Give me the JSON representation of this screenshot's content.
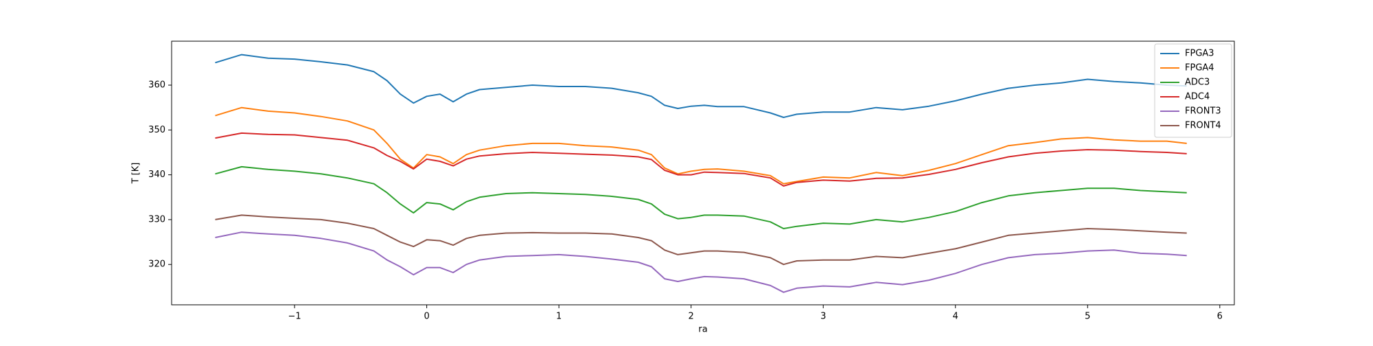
{
  "chart_data": {
    "type": "line",
    "x_label": "ra",
    "y_label": "T [K]",
    "x": [
      -1.6,
      -1.4,
      -1.2,
      -1.0,
      -0.8,
      -0.6,
      -0.4,
      -0.3,
      -0.2,
      -0.1,
      0.0,
      0.1,
      0.2,
      0.3,
      0.4,
      0.6,
      0.8,
      1.0,
      1.2,
      1.4,
      1.6,
      1.7,
      1.8,
      1.9,
      2.0,
      2.1,
      2.2,
      2.4,
      2.6,
      2.7,
      2.8,
      3.0,
      3.2,
      3.4,
      3.6,
      3.8,
      4.0,
      4.2,
      4.4,
      4.6,
      4.8,
      5.0,
      5.2,
      5.4,
      5.6,
      5.75
    ],
    "series": [
      {
        "name": "FPGA3",
        "color": "#1f77b4",
        "values": [
          365,
          366.8,
          366,
          365.8,
          365.2,
          364.5,
          363,
          361,
          358,
          356,
          357.5,
          358,
          356.3,
          358,
          359,
          359.5,
          360,
          359.7,
          359.7,
          359.3,
          358.3,
          357.5,
          355.5,
          354.8,
          355.3,
          355.5,
          355.2,
          355.2,
          353.8,
          352.8,
          353.5,
          354,
          354,
          355,
          354.5,
          355.3,
          356.5,
          358,
          359.3,
          360,
          360.5,
          361.3,
          360.8,
          360.5,
          360,
          359.8
        ]
      },
      {
        "name": "FPGA4",
        "color": "#ff7f0e",
        "values": [
          353.2,
          355,
          354.2,
          353.8,
          353,
          352,
          350,
          347,
          343.5,
          341.5,
          344.5,
          344,
          342.5,
          344.5,
          345.5,
          346.5,
          347,
          347,
          346.5,
          346.2,
          345.5,
          344.5,
          341.5,
          340.2,
          340.8,
          341.2,
          341.3,
          340.8,
          339.8,
          338,
          338.5,
          339.5,
          339.3,
          340.5,
          339.8,
          341,
          342.5,
          344.5,
          346.5,
          347.2,
          348,
          348.3,
          347.8,
          347.5,
          347.5,
          347
        ]
      },
      {
        "name": "ADC3",
        "color": "#2ca02c",
        "values": [
          340.2,
          341.8,
          341.2,
          340.8,
          340.2,
          339.3,
          338,
          336,
          333.5,
          331.5,
          333.8,
          333.5,
          332.2,
          334,
          335,
          335.8,
          336,
          335.8,
          335.6,
          335.2,
          334.5,
          333.5,
          331.2,
          330.2,
          330.5,
          331,
          331,
          330.8,
          329.5,
          328,
          328.5,
          329.2,
          329,
          330,
          329.5,
          330.5,
          331.8,
          333.8,
          335.3,
          336,
          336.5,
          337,
          337,
          336.5,
          336.2,
          336
        ]
      },
      {
        "name": "ADC4",
        "color": "#d62728",
        "values": [
          348.2,
          349.3,
          349,
          348.9,
          348.3,
          347.7,
          346,
          344.3,
          343,
          341.3,
          343.5,
          343,
          342,
          343.5,
          344.2,
          344.7,
          345,
          344.8,
          344.6,
          344.4,
          344,
          343.4,
          341,
          340,
          340,
          340.6,
          340.5,
          340.3,
          339.3,
          337.5,
          338.3,
          338.8,
          338.6,
          339.2,
          339.3,
          340.1,
          341.2,
          342.7,
          344,
          344.8,
          345.3,
          345.6,
          345.5,
          345.2,
          345,
          344.7
        ]
      },
      {
        "name": "FRONT3",
        "color": "#9467bd",
        "values": [
          326,
          327.2,
          326.8,
          326.5,
          325.8,
          324.8,
          323,
          321,
          319.5,
          317.7,
          319.3,
          319.3,
          318.2,
          320,
          321,
          321.8,
          322,
          322.2,
          321.8,
          321.2,
          320.5,
          319.5,
          316.8,
          316.2,
          316.8,
          317.3,
          317.2,
          316.8,
          315.3,
          313.8,
          314.7,
          315.2,
          315,
          316,
          315.5,
          316.5,
          318,
          320,
          321.5,
          322.2,
          322.5,
          323,
          323.2,
          322.5,
          322.3,
          322
        ]
      },
      {
        "name": "FRONT4",
        "color": "#8c564b",
        "values": [
          330,
          331,
          330.6,
          330.3,
          330,
          329.2,
          328,
          326.5,
          325,
          324,
          325.5,
          325.3,
          324.3,
          325.8,
          326.5,
          327,
          327.1,
          327,
          327,
          326.8,
          326,
          325.3,
          323.2,
          322.2,
          322.6,
          323,
          323,
          322.7,
          321.5,
          320,
          320.8,
          321,
          321,
          321.8,
          321.5,
          322.5,
          323.5,
          325,
          326.5,
          327,
          327.5,
          328,
          327.8,
          327.5,
          327.2,
          327
        ]
      }
    ],
    "xlim": [
      -1.93,
      6.11
    ],
    "xticks": [
      {
        "value": -1,
        "label": "−1"
      },
      0,
      1,
      2,
      3,
      4,
      5,
      6
    ],
    "ylim": [
      311,
      369.8
    ],
    "yticks": [
      320,
      330,
      340,
      350,
      360
    ],
    "legend": "upper right"
  }
}
